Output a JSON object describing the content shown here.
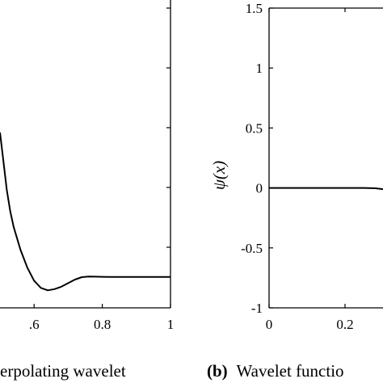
{
  "chart_data": [
    {
      "type": "line",
      "title": "",
      "caption": "erpolating wavelet",
      "xlabel": "",
      "ylabel": "",
      "xlim": [
        0.5,
        1.0
      ],
      "x_ticks": [
        0.6,
        0.8,
        1.0
      ],
      "x_tick_labels": [
        ".6",
        "0.8",
        "1"
      ],
      "grid": false,
      "series": [
        {
          "x": [
            0.5,
            0.51,
            0.52,
            0.53,
            0.54,
            0.56,
            0.58,
            0.6,
            0.62,
            0.64,
            0.66,
            0.68,
            0.7,
            0.72,
            0.74,
            0.76,
            0.78,
            0.8,
            0.82,
            0.84,
            0.86,
            0.88,
            0.9,
            0.92,
            0.94,
            0.96,
            0.98,
            1.0
          ],
          "y": [
            0.46,
            0.22,
            -0.02,
            -0.2,
            -0.33,
            -0.52,
            -0.67,
            -0.78,
            -0.84,
            -0.86,
            -0.85,
            -0.83,
            -0.8,
            -0.77,
            -0.75,
            -0.745,
            -0.746,
            -0.747,
            -0.748,
            -0.748,
            -0.748,
            -0.748,
            -0.748,
            -0.748,
            -0.748,
            -0.748,
            -0.748,
            -0.748
          ]
        }
      ]
    },
    {
      "type": "line",
      "title": "",
      "caption_label": "(b)",
      "caption": "Wavelet functio",
      "xlabel": "",
      "ylabel": "ψ(x)",
      "xlim": [
        0,
        0.3
      ],
      "ylim": [
        -1,
        1.5
      ],
      "x_ticks": [
        0,
        0.2
      ],
      "x_tick_labels": [
        "0",
        "0.2"
      ],
      "y_ticks": [
        -1,
        -0.5,
        0,
        0.5,
        1,
        1.5
      ],
      "y_tick_labels": [
        "-1",
        "-0.5",
        "0",
        "0.5",
        "1",
        "1.5"
      ],
      "grid": false,
      "series": [
        {
          "x": [
            0,
            0.05,
            0.1,
            0.15,
            0.2,
            0.25,
            0.28,
            0.3
          ],
          "y": [
            0,
            0,
            0,
            0,
            0,
            0,
            -0.003,
            -0.01
          ]
        }
      ]
    }
  ]
}
